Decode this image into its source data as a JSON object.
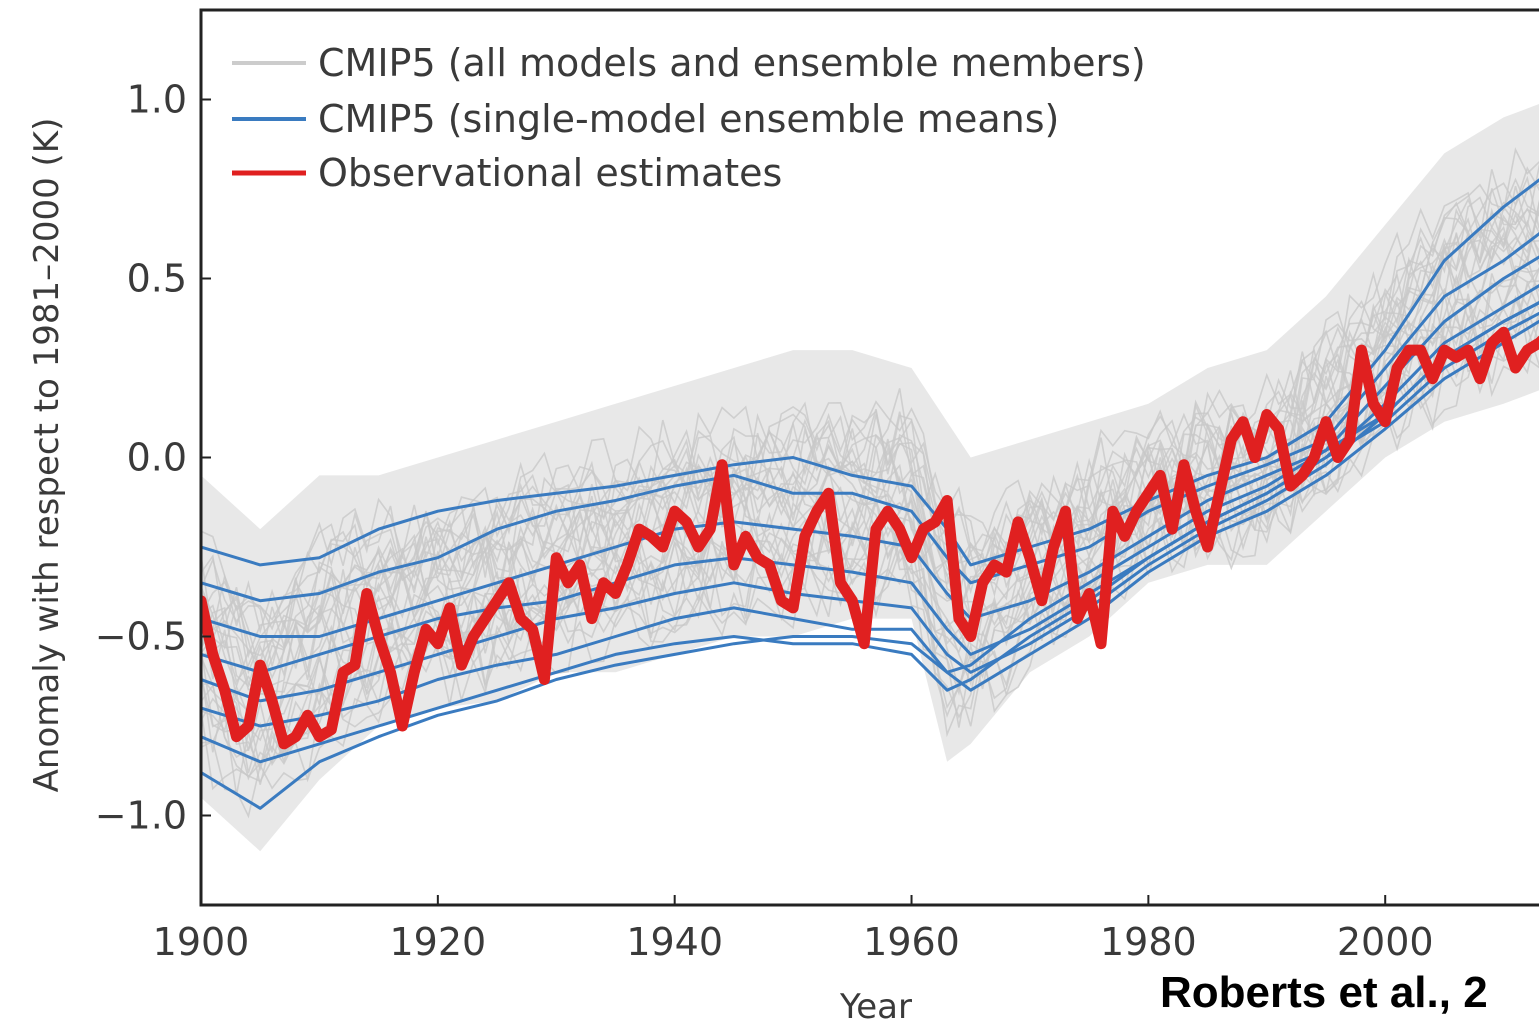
{
  "credit": "Roberts et al., 2",
  "chart_data": {
    "type": "line",
    "xlabel": "Year",
    "ylabel": "Anomaly with respect to 1981–2000 (K)",
    "xlim": [
      1900,
      2014
    ],
    "ylim": [
      -1.25,
      1.25
    ],
    "x_ticks": [
      1900,
      1920,
      1940,
      1960,
      1980,
      2000
    ],
    "x_tick_labels": [
      "1900",
      "1920",
      "1940",
      "1960",
      "1980",
      "2000"
    ],
    "y_ticks": [
      1.0,
      0.5,
      0.0,
      -0.5,
      -1.0
    ],
    "y_tick_labels": [
      "1.0",
      "0.5",
      "0.0",
      "−0.5",
      "−1.0"
    ],
    "grid": false,
    "legend_position": "top-left",
    "colors": {
      "all_models": "#cccccc",
      "ensemble_means": "#3a7bc0",
      "observations": "#e02020"
    },
    "series": [
      {
        "name": "CMIP5 (all models and ensemble members)",
        "color": "#cccccc",
        "x": [
          1900,
          1905,
          1910,
          1915,
          1920,
          1925,
          1930,
          1935,
          1940,
          1945,
          1950,
          1955,
          1960,
          1963,
          1965,
          1970,
          1975,
          1980,
          1985,
          1990,
          1995,
          2000,
          2005,
          2010,
          2014
        ],
        "low": [
          -0.95,
          -1.1,
          -0.9,
          -0.75,
          -0.7,
          -0.68,
          -0.6,
          -0.6,
          -0.55,
          -0.5,
          -0.5,
          -0.45,
          -0.45,
          -0.85,
          -0.8,
          -0.6,
          -0.5,
          -0.35,
          -0.3,
          -0.3,
          -0.15,
          0.0,
          0.1,
          0.15,
          0.2
        ],
        "high": [
          -0.05,
          -0.2,
          -0.05,
          -0.05,
          0.0,
          0.05,
          0.1,
          0.15,
          0.2,
          0.25,
          0.3,
          0.3,
          0.25,
          0.1,
          0.0,
          0.05,
          0.1,
          0.15,
          0.25,
          0.3,
          0.45,
          0.65,
          0.85,
          0.95,
          1.0
        ]
      },
      {
        "name": "CMIP5 (single-model ensemble means)",
        "color": "#3a7bc0",
        "x": [
          1900,
          1905,
          1910,
          1915,
          1920,
          1925,
          1930,
          1935,
          1940,
          1945,
          1950,
          1955,
          1960,
          1963,
          1965,
          1970,
          1975,
          1980,
          1985,
          1990,
          1995,
          2000,
          2005,
          2010,
          2014
        ],
        "lines": [
          [
            -0.25,
            -0.3,
            -0.28,
            -0.2,
            -0.15,
            -0.12,
            -0.1,
            -0.08,
            -0.05,
            -0.02,
            0.0,
            -0.05,
            -0.08,
            -0.2,
            -0.3,
            -0.25,
            -0.2,
            -0.12,
            -0.05,
            0.0,
            0.1,
            0.3,
            0.55,
            0.7,
            0.8
          ],
          [
            -0.35,
            -0.4,
            -0.38,
            -0.32,
            -0.28,
            -0.2,
            -0.15,
            -0.12,
            -0.08,
            -0.05,
            -0.1,
            -0.1,
            -0.15,
            -0.28,
            -0.35,
            -0.3,
            -0.25,
            -0.15,
            -0.08,
            -0.02,
            0.05,
            0.25,
            0.45,
            0.55,
            0.65
          ],
          [
            -0.45,
            -0.5,
            -0.5,
            -0.45,
            -0.4,
            -0.35,
            -0.3,
            -0.25,
            -0.2,
            -0.18,
            -0.2,
            -0.22,
            -0.25,
            -0.38,
            -0.45,
            -0.4,
            -0.32,
            -0.22,
            -0.12,
            -0.05,
            0.02,
            0.2,
            0.38,
            0.5,
            0.58
          ],
          [
            -0.55,
            -0.6,
            -0.55,
            -0.5,
            -0.45,
            -0.42,
            -0.4,
            -0.35,
            -0.3,
            -0.28,
            -0.3,
            -0.32,
            -0.35,
            -0.48,
            -0.55,
            -0.48,
            -0.38,
            -0.28,
            -0.18,
            -0.1,
            0.0,
            0.15,
            0.32,
            0.42,
            0.5
          ],
          [
            -0.62,
            -0.68,
            -0.65,
            -0.6,
            -0.55,
            -0.5,
            -0.45,
            -0.42,
            -0.38,
            -0.35,
            -0.38,
            -0.4,
            -0.42,
            -0.55,
            -0.6,
            -0.52,
            -0.42,
            -0.3,
            -0.2,
            -0.12,
            -0.02,
            0.12,
            0.28,
            0.38,
            0.45
          ],
          [
            -0.7,
            -0.75,
            -0.72,
            -0.68,
            -0.62,
            -0.58,
            -0.55,
            -0.5,
            -0.45,
            -0.42,
            -0.45,
            -0.48,
            -0.48,
            -0.6,
            -0.65,
            -0.55,
            -0.45,
            -0.32,
            -0.22,
            -0.15,
            -0.05,
            0.08,
            0.22,
            0.32,
            0.4
          ],
          [
            -0.78,
            -0.85,
            -0.8,
            -0.75,
            -0.7,
            -0.65,
            -0.6,
            -0.55,
            -0.52,
            -0.5,
            -0.52,
            -0.52,
            -0.55,
            -0.65,
            -0.62,
            -0.5,
            -0.4,
            -0.28,
            -0.18,
            -0.1,
            0.0,
            0.1,
            0.25,
            0.35,
            0.42
          ],
          [
            -0.88,
            -0.98,
            -0.85,
            -0.78,
            -0.72,
            -0.68,
            -0.62,
            -0.58,
            -0.55,
            -0.52,
            -0.5,
            -0.5,
            -0.52,
            -0.6,
            -0.58,
            -0.45,
            -0.35,
            -0.25,
            -0.15,
            -0.08,
            0.02,
            0.12,
            0.28,
            0.38,
            0.45
          ]
        ]
      },
      {
        "name": "Observational estimates",
        "color": "#e02020",
        "x": [
          1900,
          1901,
          1902,
          1903,
          1904,
          1905,
          1906,
          1907,
          1908,
          1909,
          1910,
          1911,
          1912,
          1913,
          1914,
          1915,
          1916,
          1917,
          1918,
          1919,
          1920,
          1921,
          1922,
          1923,
          1924,
          1925,
          1926,
          1927,
          1928,
          1929,
          1930,
          1931,
          1932,
          1933,
          1934,
          1935,
          1936,
          1937,
          1938,
          1939,
          1940,
          1941,
          1942,
          1943,
          1944,
          1945,
          1946,
          1947,
          1948,
          1949,
          1950,
          1951,
          1952,
          1953,
          1954,
          1955,
          1956,
          1957,
          1958,
          1959,
          1960,
          1961,
          1962,
          1963,
          1964,
          1965,
          1966,
          1967,
          1968,
          1969,
          1970,
          1971,
          1972,
          1973,
          1974,
          1975,
          1976,
          1977,
          1978,
          1979,
          1980,
          1981,
          1982,
          1983,
          1984,
          1985,
          1986,
          1987,
          1988,
          1989,
          1990,
          1991,
          1992,
          1993,
          1994,
          1995,
          1996,
          1997,
          1998,
          1999,
          2000,
          2001,
          2002,
          2003,
          2004,
          2005,
          2006,
          2007,
          2008,
          2009,
          2010,
          2011,
          2012,
          2013,
          2014
        ],
        "y": [
          -0.4,
          -0.55,
          -0.65,
          -0.78,
          -0.75,
          -0.58,
          -0.68,
          -0.8,
          -0.78,
          -0.72,
          -0.78,
          -0.76,
          -0.6,
          -0.58,
          -0.38,
          -0.5,
          -0.6,
          -0.75,
          -0.6,
          -0.48,
          -0.52,
          -0.42,
          -0.58,
          -0.5,
          -0.45,
          -0.4,
          -0.35,
          -0.45,
          -0.48,
          -0.62,
          -0.28,
          -0.35,
          -0.3,
          -0.45,
          -0.35,
          -0.38,
          -0.3,
          -0.2,
          -0.22,
          -0.25,
          -0.15,
          -0.18,
          -0.25,
          -0.2,
          -0.02,
          -0.3,
          -0.22,
          -0.28,
          -0.3,
          -0.4,
          -0.42,
          -0.22,
          -0.15,
          -0.1,
          -0.35,
          -0.4,
          -0.52,
          -0.2,
          -0.15,
          -0.2,
          -0.28,
          -0.2,
          -0.18,
          -0.12,
          -0.45,
          -0.5,
          -0.35,
          -0.3,
          -0.32,
          -0.18,
          -0.28,
          -0.4,
          -0.25,
          -0.15,
          -0.45,
          -0.38,
          -0.52,
          -0.15,
          -0.22,
          -0.15,
          -0.1,
          -0.05,
          -0.2,
          -0.02,
          -0.15,
          -0.25,
          -0.1,
          0.05,
          0.1,
          0.0,
          0.12,
          0.08,
          -0.08,
          -0.05,
          0.0,
          0.1,
          0.0,
          0.05,
          0.3,
          0.15,
          0.1,
          0.25,
          0.3,
          0.3,
          0.22,
          0.3,
          0.28,
          0.3,
          0.22,
          0.32,
          0.35,
          0.25,
          0.3,
          0.32,
          0.35
        ]
      }
    ]
  }
}
